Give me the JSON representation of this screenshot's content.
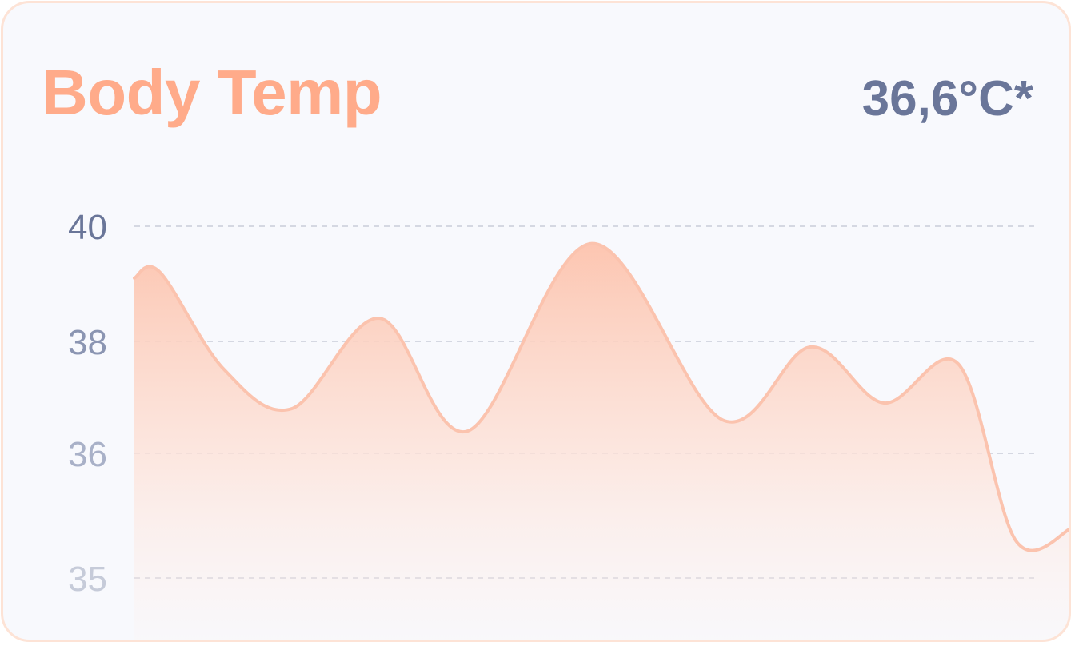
{
  "card": {
    "title": "Body Temp",
    "current_reading": "36,6°C*"
  },
  "colors": {
    "title": "#ffab8a",
    "reading": "#6a7699",
    "line": "#fbc3ae",
    "area_top": "#fdc7b2",
    "background": "#f8f9fd",
    "border": "#fde3d6",
    "grid": "#c9cdda"
  },
  "chart_data": {
    "type": "area",
    "title": "Body Temp",
    "xlabel": "",
    "ylabel": "",
    "y_ticks": [
      "40",
      "38",
      "36",
      "35"
    ],
    "y_tick_values": [
      40,
      38,
      36,
      35
    ],
    "tick_label_colors": [
      "#6a7699",
      "#8b95b2",
      "#a9b1c8",
      "#c6cbd9"
    ],
    "grid": true,
    "legend": "none",
    "series": [
      {
        "values": [
          39.1,
          39.2,
          37.5,
          36.8,
          38.4,
          36.4,
          39.7,
          36.6,
          37.9,
          36.9,
          37.6,
          35.3,
          35.4
        ]
      }
    ]
  }
}
